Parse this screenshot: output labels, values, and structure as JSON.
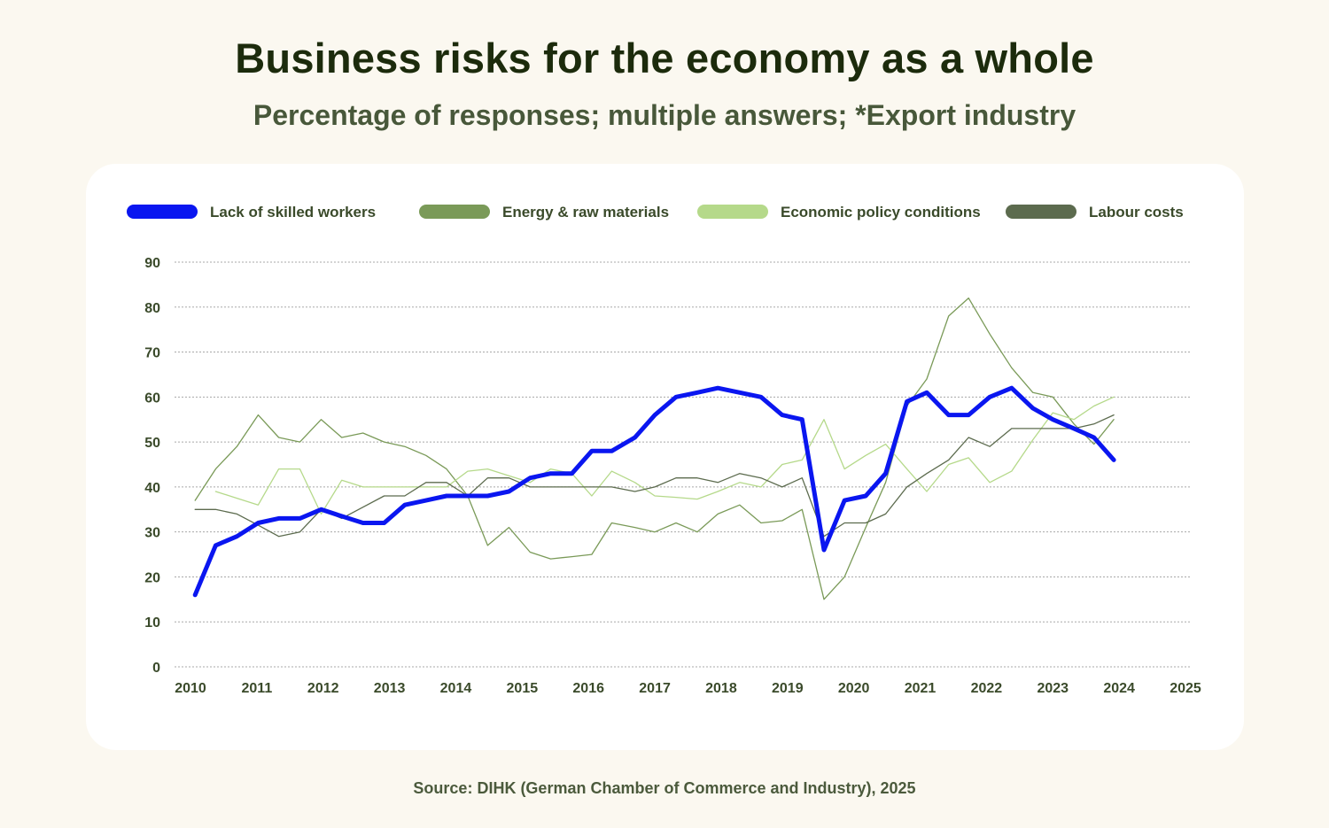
{
  "header": {
    "title": "Business risks for the economy as a whole",
    "subtitle": "Percentage of responses; multiple answers; *Export industry"
  },
  "footer": {
    "source": "Source: DIHK (German Chamber of Commerce and Industry), 2025"
  },
  "colors": {
    "background": "#fbf8f0",
    "card": "#ffffff",
    "title": "#1c2b0c",
    "axis_text": "#3a4a2a",
    "grid": "#a8a8a8"
  },
  "chart_data": {
    "type": "line",
    "title": "Business risks for the economy as a whole",
    "subtitle": "Percentage of responses; multiple answers; *Export industry",
    "xlabel": "",
    "ylabel": "",
    "xlim": [
      2010,
      2025
    ],
    "ylim": [
      0,
      90
    ],
    "grid": true,
    "legend": "top",
    "x_ticks": [
      "2010",
      "2011",
      "2012",
      "2013",
      "2014",
      "2015",
      "2016",
      "2017",
      "2018",
      "2019",
      "2020",
      "2021",
      "2022",
      "2023",
      "2024",
      "2025"
    ],
    "y_ticks": [
      "0",
      "10",
      "20",
      "30",
      "40",
      "50",
      "60",
      "70",
      "80",
      "90"
    ],
    "series": [
      {
        "name": "Energy & raw materials",
        "color": "#7a9a58",
        "thick": false,
        "points": [
          [
            2010.07,
            37
          ],
          [
            2010.38,
            44
          ],
          [
            2010.7,
            49
          ],
          [
            2011.02,
            56
          ],
          [
            2011.33,
            51
          ],
          [
            2011.65,
            50
          ],
          [
            2011.97,
            55
          ],
          [
            2012.28,
            51
          ],
          [
            2012.6,
            52
          ],
          [
            2012.92,
            50
          ],
          [
            2013.23,
            49
          ],
          [
            2013.55,
            47
          ],
          [
            2013.86,
            44
          ],
          [
            2014.18,
            38
          ],
          [
            2014.48,
            27
          ],
          [
            2014.8,
            31
          ],
          [
            2015.12,
            25.5
          ],
          [
            2015.43,
            24
          ],
          [
            2015.75,
            24.5
          ],
          [
            2016.05,
            25
          ],
          [
            2016.35,
            32
          ],
          [
            2016.7,
            31
          ],
          [
            2017.0,
            30
          ],
          [
            2017.32,
            32
          ],
          [
            2017.64,
            30
          ],
          [
            2017.95,
            34
          ],
          [
            2018.28,
            36
          ],
          [
            2018.6,
            32
          ],
          [
            2018.92,
            32.5
          ],
          [
            2019.22,
            35
          ],
          [
            2019.55,
            15
          ],
          [
            2019.86,
            20
          ],
          [
            2020.18,
            31
          ],
          [
            2020.48,
            41
          ],
          [
            2020.8,
            58
          ],
          [
            2021.1,
            64
          ],
          [
            2021.43,
            78
          ],
          [
            2021.73,
            82
          ],
          [
            2022.05,
            74
          ],
          [
            2022.38,
            66.5
          ],
          [
            2022.7,
            61
          ],
          [
            2023.0,
            60
          ],
          [
            2023.32,
            54
          ],
          [
            2023.62,
            49.5
          ],
          [
            2023.92,
            55
          ]
        ]
      },
      {
        "name": "Economic policy conditions",
        "color": "#b5d98a",
        "thick": false,
        "points": [
          [
            2010.38,
            39
          ],
          [
            2010.7,
            37.5
          ],
          [
            2011.02,
            36
          ],
          [
            2011.33,
            44
          ],
          [
            2011.65,
            44
          ],
          [
            2011.97,
            34
          ],
          [
            2012.28,
            41.5
          ],
          [
            2012.6,
            40
          ],
          [
            2012.92,
            40
          ],
          [
            2013.23,
            40
          ],
          [
            2013.55,
            40
          ],
          [
            2013.86,
            40
          ],
          [
            2014.18,
            43.5
          ],
          [
            2014.48,
            44
          ],
          [
            2014.8,
            42.5
          ],
          [
            2015.12,
            41
          ],
          [
            2015.43,
            44
          ],
          [
            2015.75,
            43
          ],
          [
            2016.05,
            38
          ],
          [
            2016.35,
            43.5
          ],
          [
            2016.7,
            41
          ],
          [
            2017.0,
            38
          ],
          [
            2017.32,
            37.7
          ],
          [
            2017.64,
            37.3
          ],
          [
            2017.95,
            39
          ],
          [
            2018.28,
            41
          ],
          [
            2018.6,
            40
          ],
          [
            2018.92,
            45
          ],
          [
            2019.22,
            46
          ],
          [
            2019.55,
            55
          ],
          [
            2019.86,
            44
          ],
          [
            2020.18,
            47
          ],
          [
            2020.48,
            49.5
          ],
          [
            2020.8,
            44
          ],
          [
            2021.1,
            39
          ],
          [
            2021.43,
            45
          ],
          [
            2021.73,
            46.5
          ],
          [
            2022.05,
            41
          ],
          [
            2022.38,
            43.5
          ],
          [
            2022.7,
            50.5
          ],
          [
            2023.0,
            56.5
          ],
          [
            2023.32,
            55
          ],
          [
            2023.62,
            58
          ],
          [
            2023.92,
            60
          ]
        ]
      },
      {
        "name": "Labour costs",
        "color": "#5c6b4e",
        "thick": false,
        "points": [
          [
            2010.07,
            35
          ],
          [
            2010.38,
            35
          ],
          [
            2010.7,
            34
          ],
          [
            2011.02,
            31.5
          ],
          [
            2011.33,
            29
          ],
          [
            2011.65,
            30
          ],
          [
            2011.97,
            35
          ],
          [
            2012.28,
            33
          ],
          [
            2012.6,
            35.5
          ],
          [
            2012.92,
            38
          ],
          [
            2013.23,
            38
          ],
          [
            2013.55,
            41
          ],
          [
            2013.86,
            41
          ],
          [
            2014.18,
            38
          ],
          [
            2014.48,
            42
          ],
          [
            2014.8,
            42
          ],
          [
            2015.12,
            40
          ],
          [
            2015.43,
            40
          ],
          [
            2015.75,
            40
          ],
          [
            2016.05,
            40
          ],
          [
            2016.35,
            40
          ],
          [
            2016.7,
            39
          ],
          [
            2017.0,
            40
          ],
          [
            2017.32,
            42
          ],
          [
            2017.64,
            42
          ],
          [
            2017.95,
            41
          ],
          [
            2018.28,
            43
          ],
          [
            2018.6,
            42
          ],
          [
            2018.92,
            40
          ],
          [
            2019.22,
            42
          ],
          [
            2019.55,
            29
          ],
          [
            2019.86,
            32
          ],
          [
            2020.18,
            32
          ],
          [
            2020.48,
            34
          ],
          [
            2020.8,
            40
          ],
          [
            2021.1,
            43
          ],
          [
            2021.43,
            46
          ],
          [
            2021.73,
            51
          ],
          [
            2022.05,
            49
          ],
          [
            2022.38,
            53
          ],
          [
            2022.7,
            53
          ],
          [
            2023.0,
            53
          ],
          [
            2023.32,
            53
          ],
          [
            2023.62,
            54
          ],
          [
            2023.92,
            56
          ]
        ]
      },
      {
        "name": "Lack of skilled workers",
        "color": "#0a16f0",
        "thick": true,
        "points": [
          [
            2010.07,
            16
          ],
          [
            2010.38,
            27
          ],
          [
            2010.7,
            29
          ],
          [
            2011.02,
            32
          ],
          [
            2011.33,
            33
          ],
          [
            2011.65,
            33
          ],
          [
            2011.97,
            35
          ],
          [
            2012.28,
            33.5
          ],
          [
            2012.6,
            32
          ],
          [
            2012.92,
            32
          ],
          [
            2013.23,
            36
          ],
          [
            2013.55,
            37
          ],
          [
            2013.86,
            38
          ],
          [
            2014.18,
            38
          ],
          [
            2014.48,
            38
          ],
          [
            2014.8,
            39
          ],
          [
            2015.12,
            42
          ],
          [
            2015.43,
            43
          ],
          [
            2015.75,
            43
          ],
          [
            2016.05,
            48
          ],
          [
            2016.35,
            48
          ],
          [
            2016.7,
            51
          ],
          [
            2017.0,
            56
          ],
          [
            2017.32,
            60
          ],
          [
            2017.64,
            61
          ],
          [
            2017.95,
            62
          ],
          [
            2018.28,
            61
          ],
          [
            2018.6,
            60
          ],
          [
            2018.92,
            56
          ],
          [
            2019.22,
            55
          ],
          [
            2019.55,
            26
          ],
          [
            2019.86,
            37
          ],
          [
            2020.18,
            38
          ],
          [
            2020.48,
            43
          ],
          [
            2020.8,
            59
          ],
          [
            2021.1,
            61
          ],
          [
            2021.43,
            56
          ],
          [
            2021.73,
            56
          ],
          [
            2022.05,
            60
          ],
          [
            2022.38,
            62
          ],
          [
            2022.7,
            57.5
          ],
          [
            2023.0,
            55
          ],
          [
            2023.32,
            53
          ],
          [
            2023.62,
            51
          ],
          [
            2023.92,
            46
          ]
        ]
      }
    ]
  }
}
